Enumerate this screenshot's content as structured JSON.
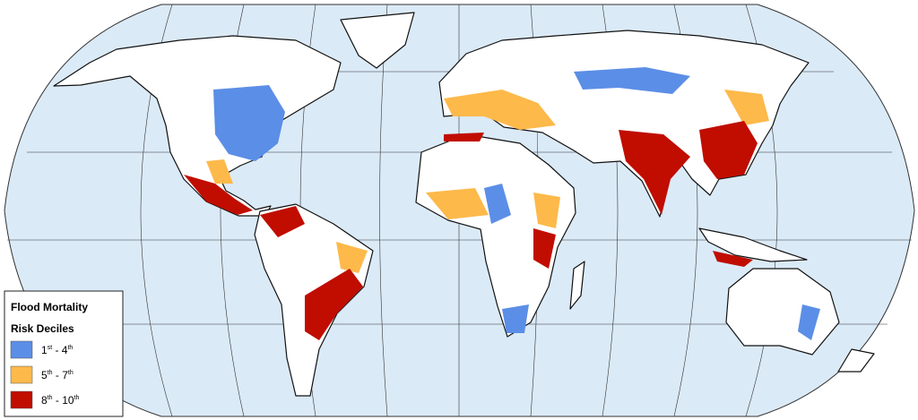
{
  "legend": {
    "title": "Flood Mortality",
    "subtitle": "Risk Deciles",
    "entries": [
      {
        "color": "#5b8ee6",
        "label_parts": [
          "1",
          "st",
          " - 4",
          "th"
        ]
      },
      {
        "color": "#fdb94a",
        "label_parts": [
          "5",
          "th",
          " - 7",
          "th"
        ]
      },
      {
        "color": "#c00d00",
        "label_parts": [
          "8",
          "th",
          " - 10",
          "th"
        ]
      }
    ]
  }
}
